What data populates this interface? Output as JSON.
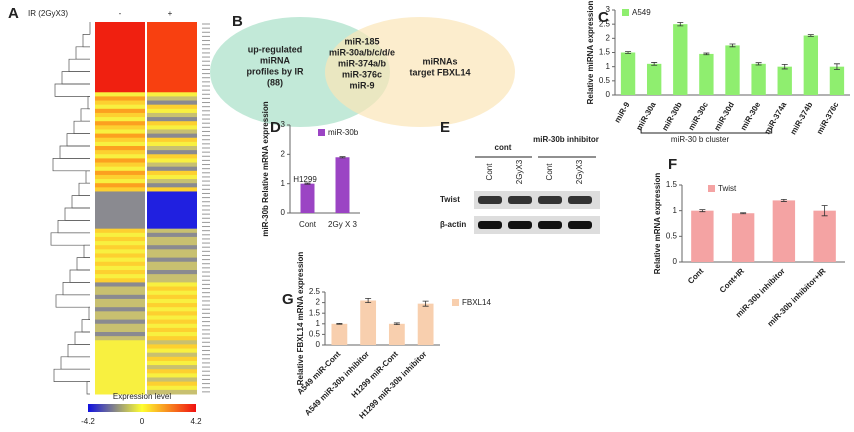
{
  "panel_labels": [
    "A",
    "B",
    "C",
    "D",
    "E",
    "F",
    "G"
  ],
  "heatmap": {
    "condition_label": "IR (2GyX3)",
    "columns": [
      "-",
      "+"
    ],
    "colorbar_title": "Expression level",
    "colorbar_ticks": [
      -4.2,
      0,
      4.2
    ]
  },
  "venn": {
    "left": [
      "up-regulated",
      "miRNA",
      "profiles by IR",
      "(88)"
    ],
    "center": [
      "miR-185",
      "miR-30a/b/c/d/e",
      "miR-374a/b",
      "miR-376c",
      "miR-9"
    ],
    "right": [
      "miRNAs",
      "target FBXL14"
    ]
  },
  "western": {
    "groups": [
      "cont",
      "miR-30b inhibitor"
    ],
    "lanes": [
      "Cont",
      "2GyX3",
      "Cont",
      "2GyX3"
    ],
    "rows": [
      "Twist",
      "β-actin"
    ]
  },
  "chart_data": [
    {
      "type": "bar",
      "ylabel": "Relative miRNA expression",
      "annotation": "miR-30 b cluster",
      "categories": [
        "miR-9",
        "miR-30a",
        "miR-30b",
        "miR-30c",
        "miR-30d",
        "miR-30e",
        "miR-374a",
        "miR-374b",
        "miR-376c"
      ],
      "series": [
        {
          "name": "A549",
          "color": "#8fee6f",
          "values": [
            1.5,
            1.1,
            2.5,
            1.45,
            1.75,
            1.1,
            1.0,
            2.1,
            1.0
          ],
          "errors": [
            0.03,
            0.05,
            0.06,
            0.03,
            0.05,
            0.04,
            0.08,
            0.03,
            0.1
          ]
        }
      ],
      "ylim": [
        0,
        3
      ],
      "yticks": [
        0,
        0.5,
        1,
        1.5,
        2,
        2.5,
        3
      ]
    },
    {
      "type": "bar",
      "ylabel": "miR-30b Relative mRNA expression",
      "annotation": "H1299",
      "categories": [
        "Cont",
        "2Gy X 3"
      ],
      "series": [
        {
          "name": "miR-30b",
          "color": "#9b44c4",
          "values": [
            1.0,
            1.9
          ],
          "errors": [
            0.02,
            0.02
          ]
        }
      ],
      "ylim": [
        0,
        3
      ],
      "yticks": [
        0,
        1,
        2,
        3
      ]
    },
    {
      "type": "bar",
      "ylabel": "Relative mRNA expression",
      "categories": [
        "Cont",
        "Cont+IR",
        "miR-30b inhibitor",
        "miR-30b inhibitor+IR"
      ],
      "series": [
        {
          "name": "Twist",
          "color": "#f4a3a3",
          "values": [
            1.0,
            0.95,
            1.2,
            1.0
          ],
          "errors": [
            0.02,
            0.01,
            0.02,
            0.1
          ]
        }
      ],
      "ylim": [
        0,
        1.5
      ],
      "yticks": [
        0,
        0.5,
        1,
        1.5
      ]
    },
    {
      "type": "bar",
      "ylabel": "Relative FBXL14 mRNA expression",
      "categories": [
        "A549 miR-Cont",
        "A549 miR-30b inhibitor",
        "H1299 miR-Cont",
        "H1299 miR-30b inhibitor"
      ],
      "series": [
        {
          "name": "FBXL14",
          "color": "#f8cfae",
          "values": [
            1.0,
            2.1,
            1.0,
            1.95
          ],
          "errors": [
            0.02,
            0.1,
            0.04,
            0.12
          ]
        }
      ],
      "ylim": [
        0,
        2.5
      ],
      "yticks": [
        0,
        0.5,
        1,
        1.5,
        2,
        2.5
      ]
    }
  ]
}
